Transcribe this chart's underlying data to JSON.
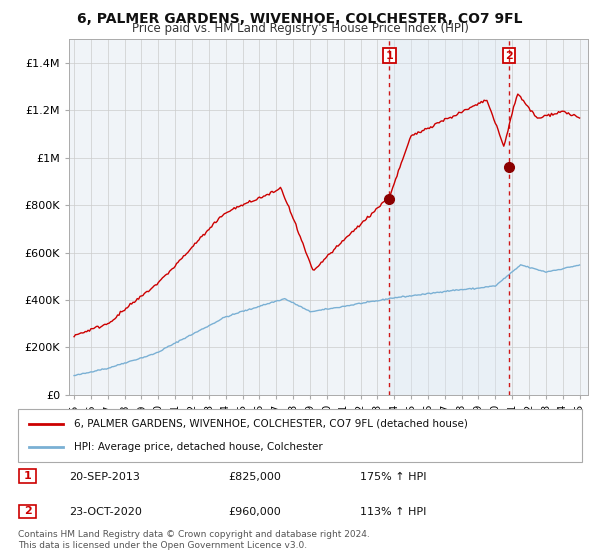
{
  "title": "6, PALMER GARDENS, WIVENHOE, COLCHESTER, CO7 9FL",
  "subtitle": "Price paid vs. HM Land Registry's House Price Index (HPI)",
  "legend_line1": "6, PALMER GARDENS, WIVENHOE, COLCHESTER, CO7 9FL (detached house)",
  "legend_line2": "HPI: Average price, detached house, Colchester",
  "annotation1_label": "1",
  "annotation1_date": "20-SEP-2013",
  "annotation1_price": "£825,000",
  "annotation1_hpi": "175% ↑ HPI",
  "annotation2_label": "2",
  "annotation2_date": "23-OCT-2020",
  "annotation2_price": "£960,000",
  "annotation2_hpi": "113% ↑ HPI",
  "footer1": "Contains HM Land Registry data © Crown copyright and database right 2024.",
  "footer2": "This data is licensed under the Open Government Licence v3.0.",
  "red_color": "#cc0000",
  "blue_color": "#7ab0d4",
  "shade_color": "#dce9f5",
  "background_color": "#ffffff",
  "grid_color": "#cccccc",
  "ylim": [
    0,
    1500000
  ],
  "yticks": [
    0,
    200000,
    400000,
    600000,
    800000,
    1000000,
    1200000,
    1400000
  ],
  "ytick_labels": [
    "£0",
    "£200K",
    "£400K",
    "£600K",
    "£800K",
    "£1M",
    "£1.2M",
    "£1.4M"
  ],
  "xlim_start": 1994.7,
  "xlim_end": 2025.5,
  "point1_x": 2013.72,
  "point1_y": 825000,
  "point2_x": 2020.81,
  "point2_y": 960000
}
